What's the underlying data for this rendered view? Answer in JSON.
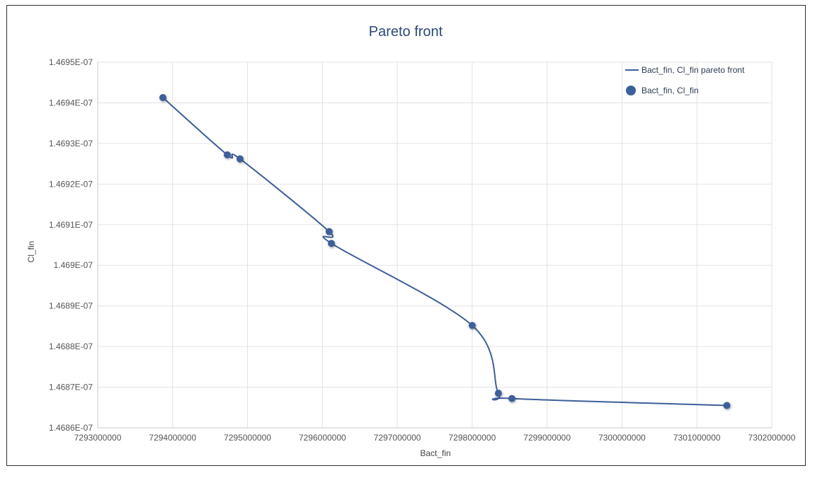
{
  "chart_data": {
    "type": "line",
    "title": "Pareto front",
    "xlabel": "Bact_fin",
    "ylabel": "Cl_fin",
    "xlim": [
      7293000000,
      7302000000
    ],
    "ylim": [
      1.4686e-07,
      1.4695e-07
    ],
    "x_ticks": [
      "7293000000",
      "7294000000",
      "7295000000",
      "7296000000",
      "7297000000",
      "7298000000",
      "7299000000",
      "7300000000",
      "7301000000",
      "7302000000"
    ],
    "y_ticks": [
      "1.4686E-07",
      "1.4687E-07",
      "1.4688E-07",
      "1.4689E-07",
      "1.469E-07",
      "1.4691E-07",
      "1.4692E-07",
      "1.4693E-07",
      "1.4694E-07",
      "1.4695E-07"
    ],
    "grid": true,
    "legend_position": "top-right",
    "colors": {
      "series": "#3d5f9b"
    },
    "series": [
      {
        "name": "Bact_fin, Cl_fin pareto front",
        "kind": "line",
        "points": [
          [
            7293870000,
            1.469413e-07
          ],
          [
            7294730000,
            1.469272e-07
          ],
          [
            7294900000,
            1.469262e-07
          ],
          [
            7296090000,
            1.469083e-07
          ],
          [
            7296120000,
            1.469054e-07
          ],
          [
            7298000000,
            1.468852e-07
          ],
          [
            7298350000,
            1.468685e-07
          ],
          [
            7298530000,
            1.468672e-07
          ],
          [
            7301400000,
            1.468655e-07
          ]
        ]
      },
      {
        "name": "Bact_fin, Cl_fin",
        "kind": "scatter",
        "points": [
          [
            7293870000,
            1.469413e-07
          ],
          [
            7294730000,
            1.469272e-07
          ],
          [
            7294900000,
            1.469262e-07
          ],
          [
            7296090000,
            1.469083e-07
          ],
          [
            7296120000,
            1.469054e-07
          ],
          [
            7298000000,
            1.468852e-07
          ],
          [
            7298350000,
            1.468685e-07
          ],
          [
            7298530000,
            1.468672e-07
          ],
          [
            7301400000,
            1.468655e-07
          ]
        ]
      }
    ]
  }
}
